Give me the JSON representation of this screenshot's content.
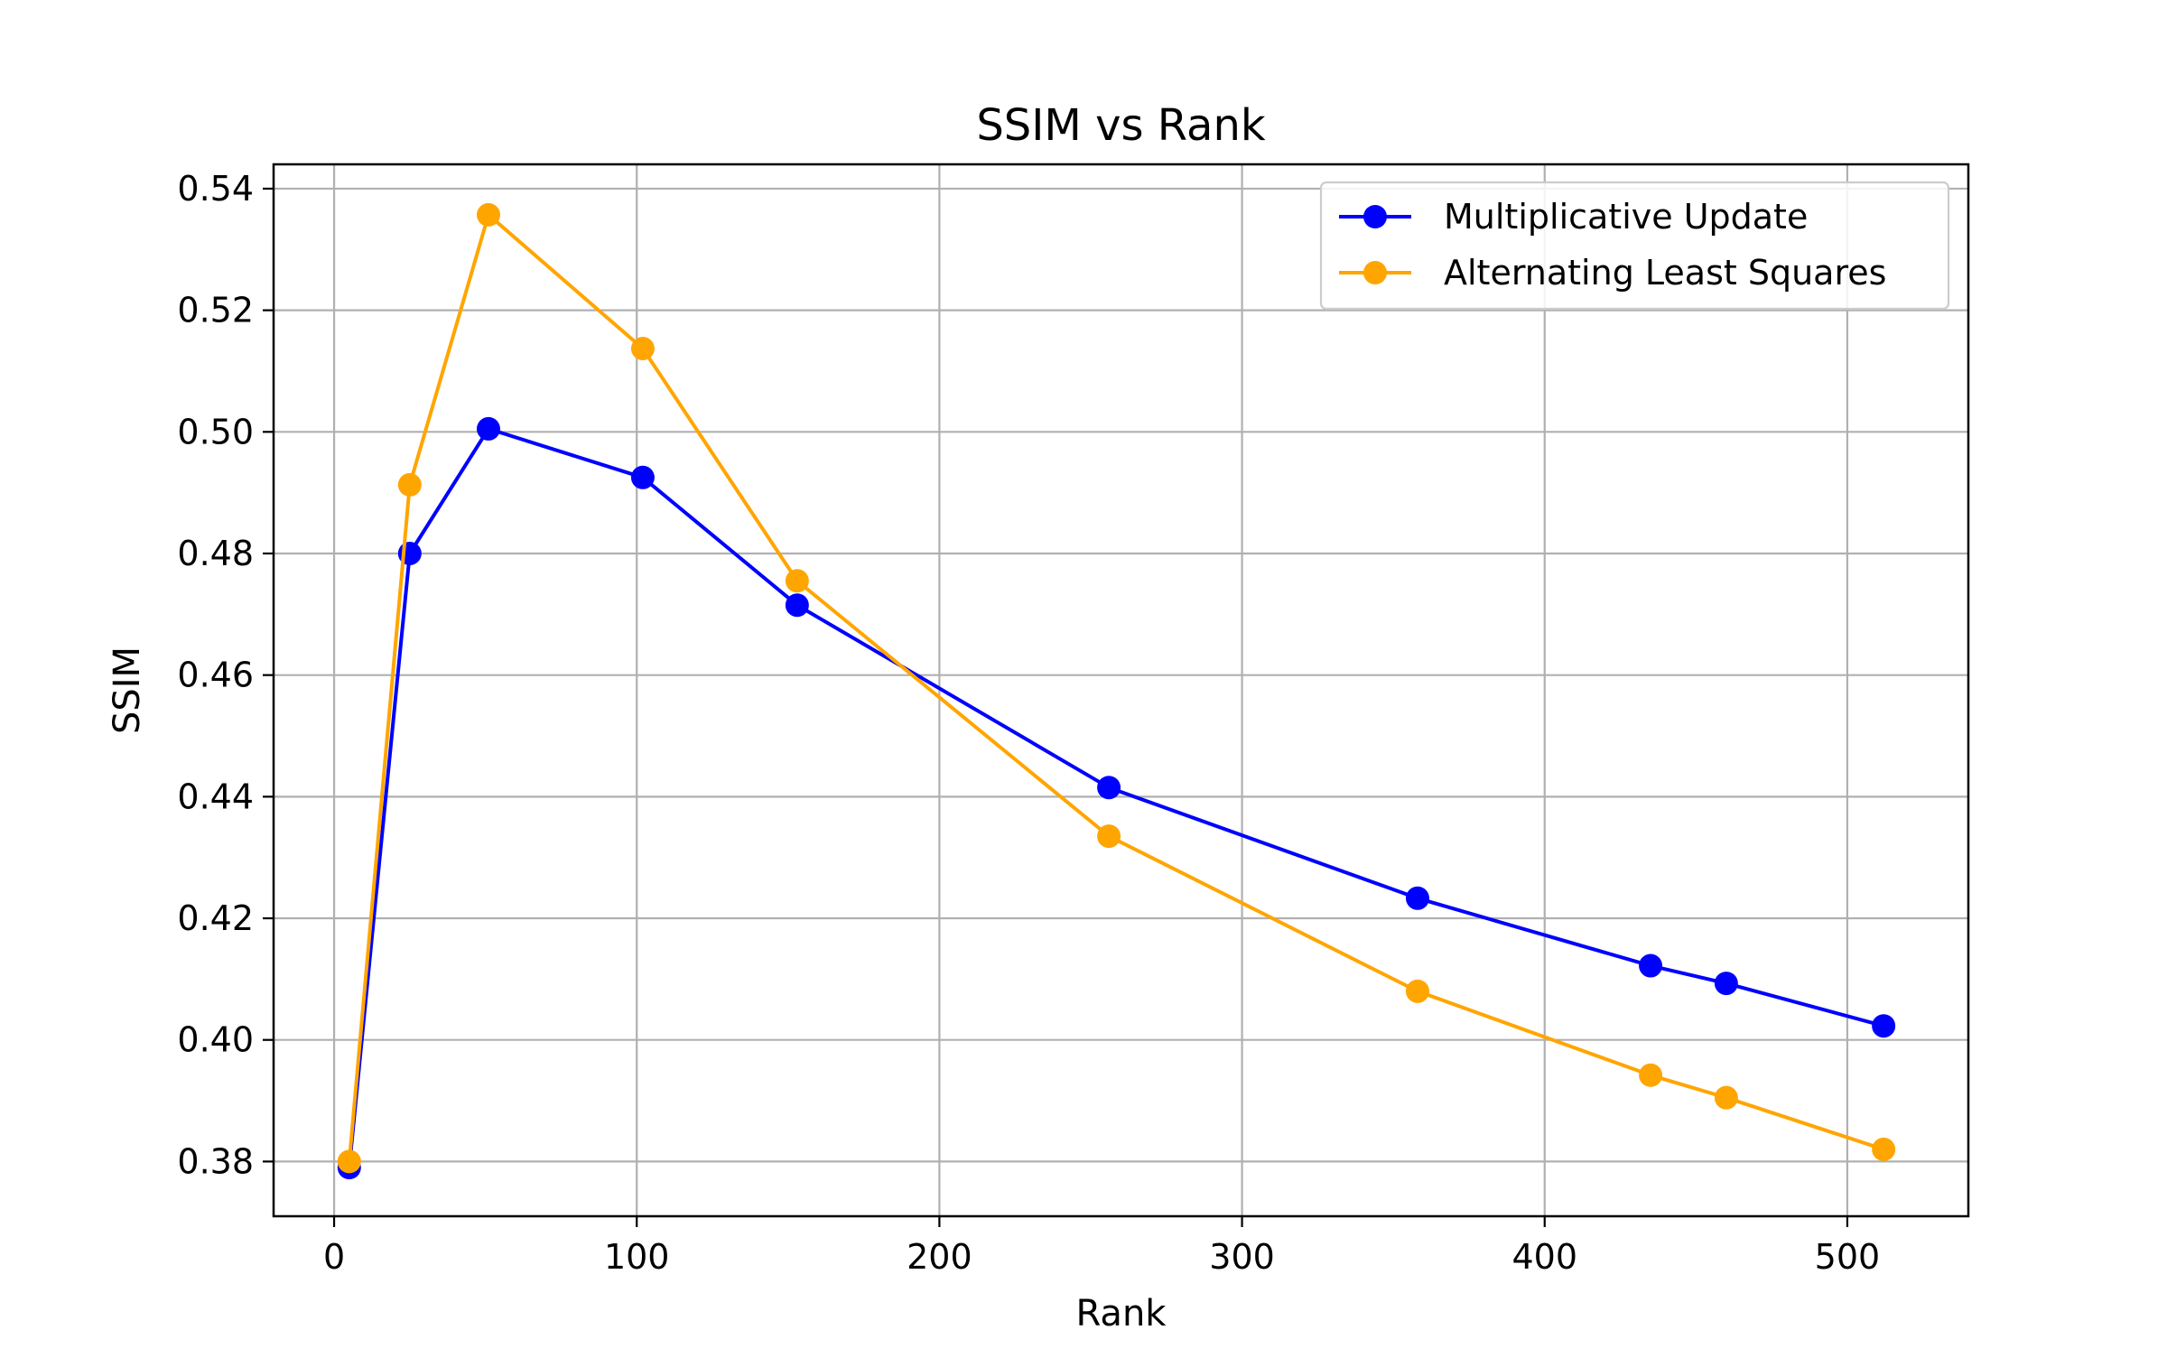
{
  "chart_data": {
    "type": "line",
    "title": "SSIM vs Rank",
    "xlabel": "Rank",
    "ylabel": "SSIM",
    "xlim": [
      -20,
      540
    ],
    "ylim": [
      0.371,
      0.544
    ],
    "xticks": [
      0,
      100,
      200,
      300,
      400,
      500
    ],
    "yticks": [
      0.38,
      0.4,
      0.42,
      0.44,
      0.46,
      0.48,
      0.5,
      0.52,
      0.54
    ],
    "grid": true,
    "legend_position": "top-right",
    "series": [
      {
        "name": "Multiplicative Update",
        "color": "#0000ff",
        "marker": "circle",
        "x": [
          5,
          25,
          51,
          102,
          153,
          256,
          358,
          435,
          460,
          512
        ],
        "y": [
          0.379,
          0.48,
          0.5005,
          0.4925,
          0.4715,
          0.4415,
          0.4233,
          0.4122,
          0.4093,
          0.4023
        ]
      },
      {
        "name": "Alternating Least Squares",
        "color": "#ffa500",
        "marker": "circle",
        "x": [
          5,
          25,
          51,
          102,
          153,
          256,
          358,
          435,
          460,
          512
        ],
        "y": [
          0.38,
          0.4913,
          0.5357,
          0.5137,
          0.4755,
          0.4335,
          0.408,
          0.3942,
          0.3905,
          0.382
        ]
      }
    ]
  }
}
